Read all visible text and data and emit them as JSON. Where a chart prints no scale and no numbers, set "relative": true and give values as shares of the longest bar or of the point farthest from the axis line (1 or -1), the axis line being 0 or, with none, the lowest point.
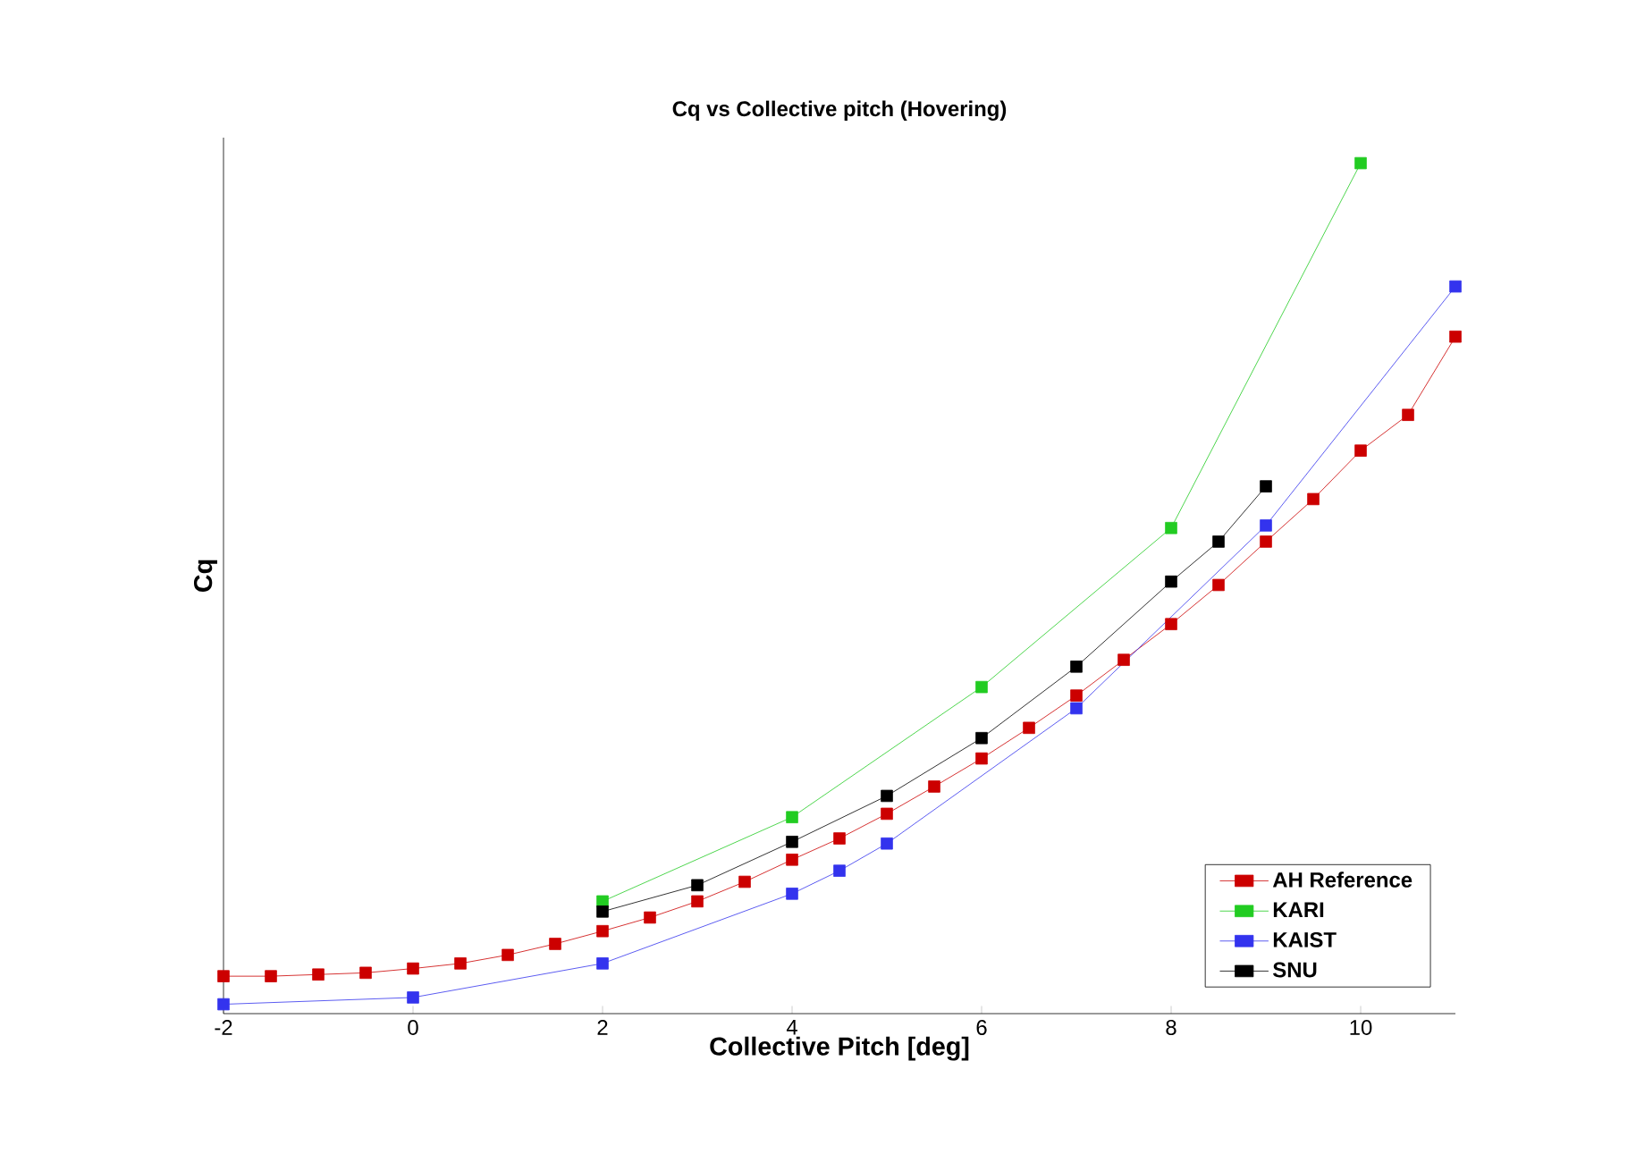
{
  "chart_data": {
    "type": "line",
    "title": "Cq vs Collective pitch (Hovering)",
    "xlabel": "Collective Pitch [deg]",
    "ylabel": "Cq",
    "relative": true,
    "xlim": [
      -2,
      11
    ],
    "xticks": [
      -2,
      0,
      2,
      4,
      6,
      8,
      10
    ],
    "marker": "square",
    "legend": "bottom right",
    "grid": false,
    "series": [
      {
        "name": "AH Reference",
        "color": "#cc0000",
        "x": [
          -2,
          -1.5,
          -1,
          -0.5,
          0,
          0.5,
          1,
          1.5,
          2,
          2.5,
          3,
          3.5,
          4,
          4.5,
          5,
          5.5,
          6,
          6.5,
          7,
          7.5,
          8,
          8.5,
          9,
          9.5,
          10,
          10.5,
          11
        ],
        "values": [
          0.044,
          0.044,
          0.046,
          0.048,
          0.053,
          0.059,
          0.069,
          0.082,
          0.097,
          0.113,
          0.132,
          0.155,
          0.181,
          0.206,
          0.235,
          0.267,
          0.3,
          0.336,
          0.374,
          0.416,
          0.458,
          0.504,
          0.555,
          0.605,
          0.662,
          0.704,
          0.796
        ]
      },
      {
        "name": "KARI",
        "color": "#22cc22",
        "x": [
          2,
          4,
          6,
          8,
          10
        ],
        "values": [
          0.132,
          0.231,
          0.384,
          0.571,
          1
        ]
      },
      {
        "name": "KAIST",
        "color": "#3333ee",
        "x": [
          -2,
          0,
          2,
          4,
          4.5,
          5,
          7,
          9,
          11
        ],
        "values": [
          0.011,
          0.019,
          0.059,
          0.141,
          0.168,
          0.2,
          0.359,
          0.574,
          0.855
        ]
      },
      {
        "name": "SNU",
        "color": "#000000",
        "x": [
          2,
          3,
          4,
          5,
          6,
          7,
          8,
          8.5,
          9
        ],
        "values": [
          0.12,
          0.151,
          0.202,
          0.256,
          0.324,
          0.408,
          0.508,
          0.555,
          0.62
        ]
      }
    ]
  }
}
